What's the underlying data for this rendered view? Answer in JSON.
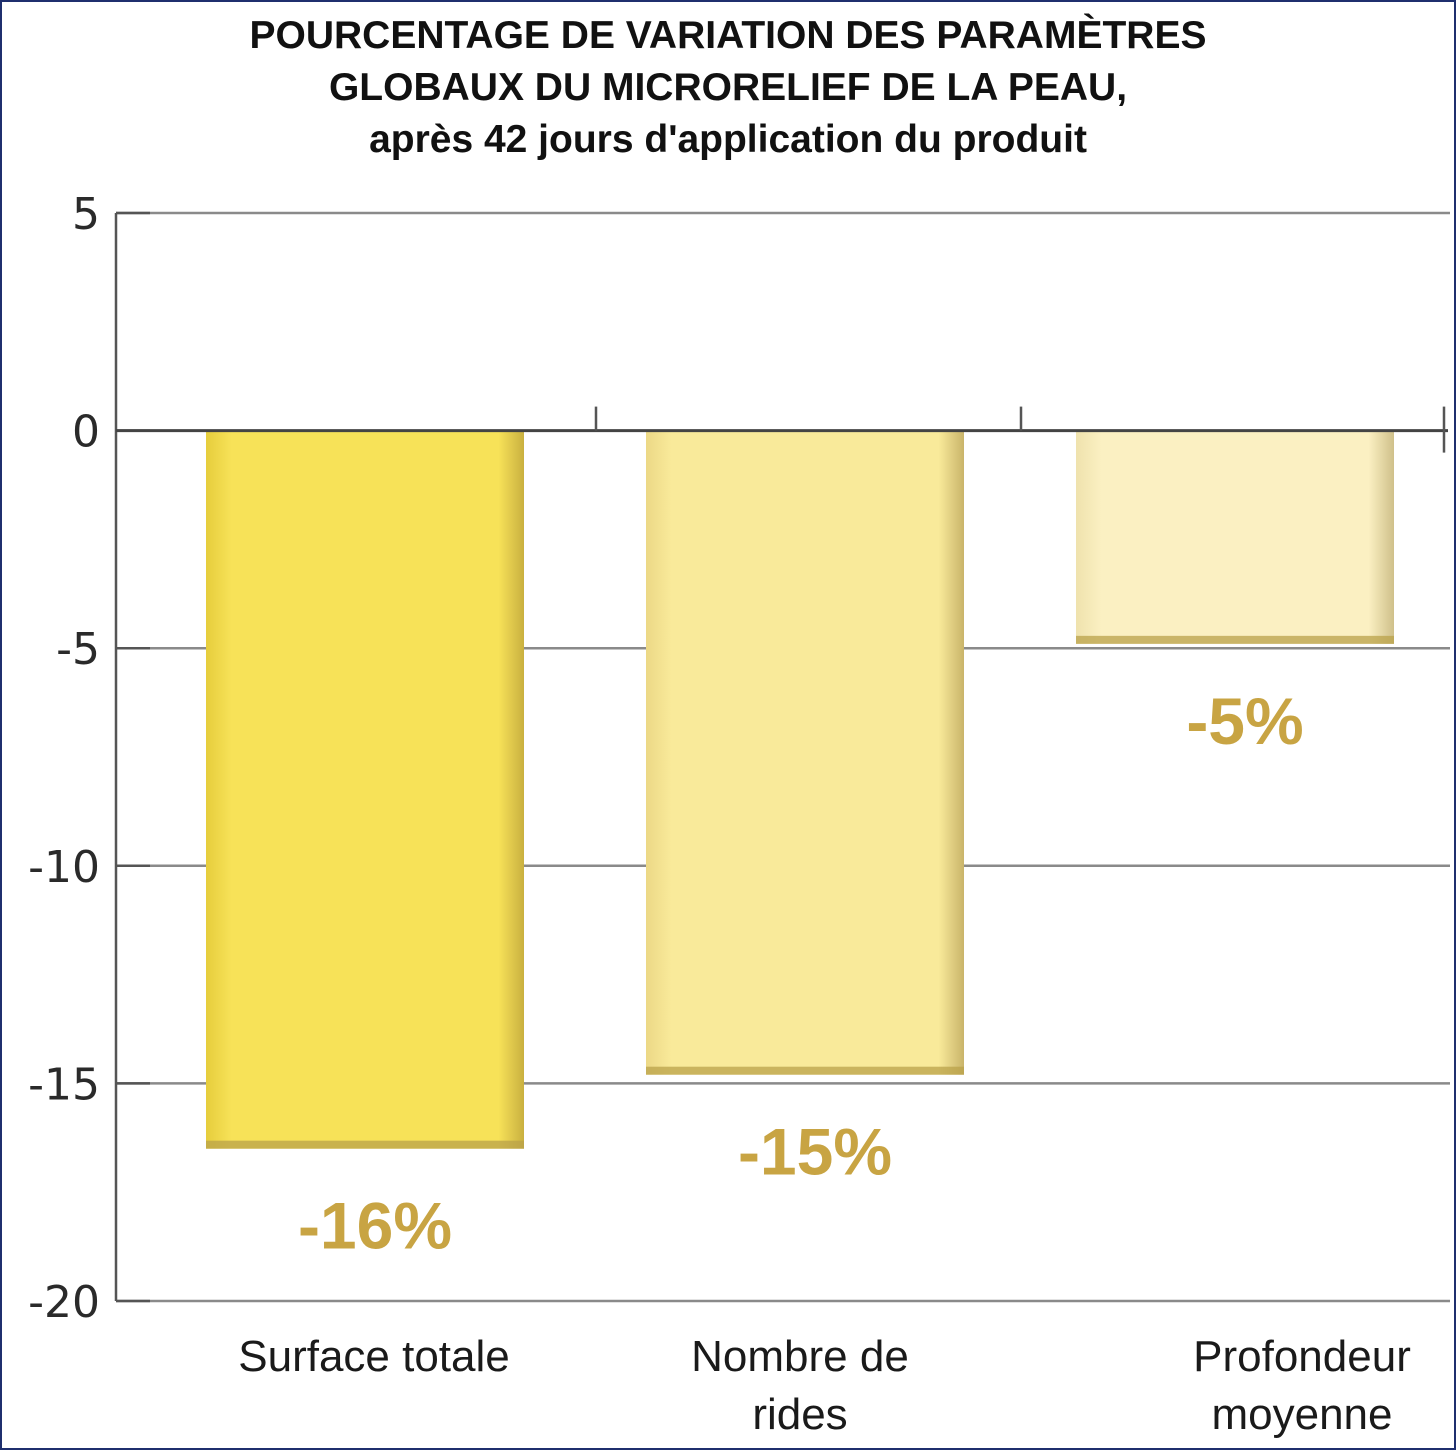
{
  "chart_data": {
    "type": "bar",
    "title_lines": [
      "POURCENTAGE DE VARIATION DES PARAMÈTRES",
      "GLOBAUX DU MICRORELIEF DE LA PEAU,",
      "après 42 jours d'application du produit"
    ],
    "categories": [
      [
        "Surface totale"
      ],
      [
        "Nombre de",
        "rides"
      ],
      [
        "Profondeur",
        "moyenne"
      ]
    ],
    "values": [
      -16.5,
      -14.8,
      -4.9
    ],
    "data_labels": [
      "-16%",
      "-15%",
      "-5%"
    ],
    "bar_colors": [
      "#f7e258",
      "#f9ea9a",
      "#fbf0c2"
    ],
    "ylim": [
      -20,
      5
    ],
    "yticks": [
      5,
      0,
      -5,
      -10,
      -15,
      -20
    ],
    "ytick_labels": [
      "5",
      "0",
      "-5",
      "-10",
      "-15",
      "-20"
    ],
    "grid": true,
    "legend": "none"
  }
}
